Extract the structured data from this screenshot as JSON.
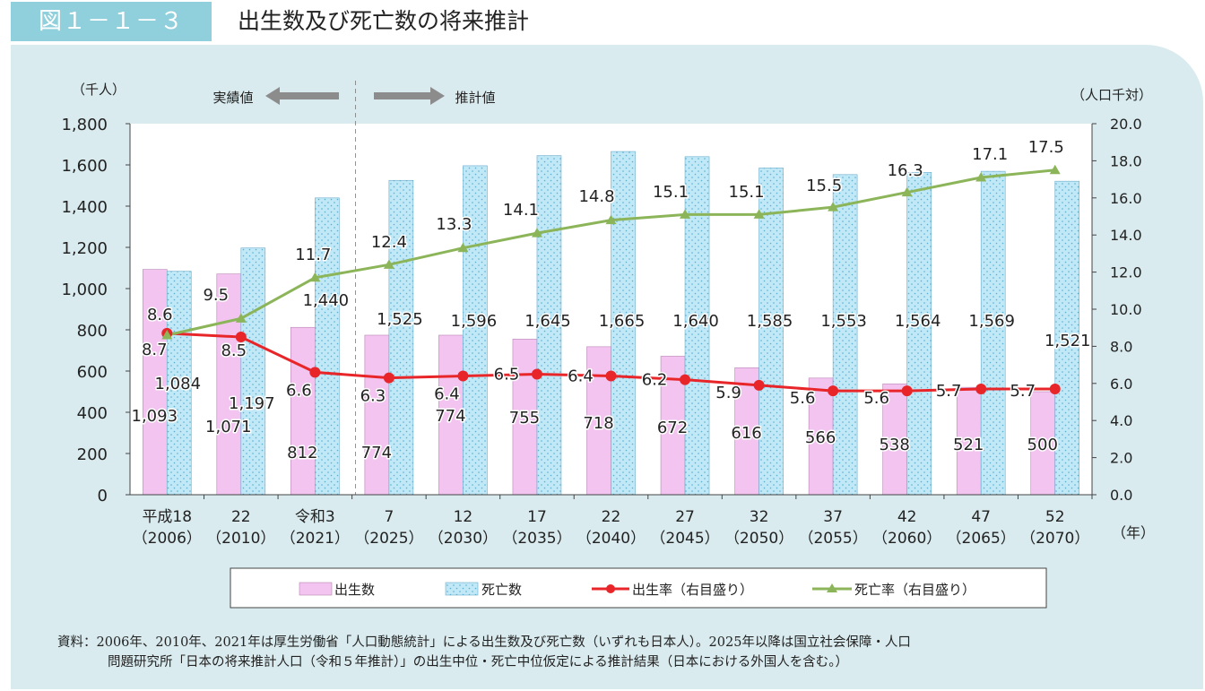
{
  "header": {
    "figure_number": "図１－１－３",
    "title": "出生数及び死亡数の将来推計"
  },
  "source": {
    "line1": "資料：2006年、2010年、2021年は厚生労働省「人口動態統計」による出生数及び死亡数（いずれも日本人）。2025年以降は国立社会保障・人口",
    "line2": "問題研究所「日本の将来推計人口（令和５年推計）」の出生中位・死亡中位仮定による推計結果（日本における外国人を含む。）"
  },
  "colors": {
    "panel_bg": "#d9ebef",
    "births_bar": "#f2c4ef",
    "deaths_bar": "#c0e8f6",
    "birth_rate_line": "#e8262a",
    "death_rate_line": "#8cb55a",
    "arrow": "#8c8c8c"
  },
  "chart_data": {
    "type": "bar",
    "left_unit": "（千人）",
    "right_unit": "（人口千対）",
    "x_unit": "（年）",
    "actual_label": "実績値",
    "projected_label": "推計値",
    "categories": [
      {
        "era": "平成18",
        "year": "（2006）"
      },
      {
        "era": "22",
        "year": "（2010）"
      },
      {
        "era": "令和3",
        "year": "（2021）"
      },
      {
        "era": "7",
        "year": "（2025）"
      },
      {
        "era": "12",
        "year": "（2030）"
      },
      {
        "era": "17",
        "year": "（2035）"
      },
      {
        "era": "22",
        "year": "（2040）"
      },
      {
        "era": "27",
        "year": "（2045）"
      },
      {
        "era": "32",
        "year": "（2050）"
      },
      {
        "era": "37",
        "year": "（2055）"
      },
      {
        "era": "42",
        "year": "（2060）"
      },
      {
        "era": "47",
        "year": "（2065）"
      },
      {
        "era": "52",
        "year": "（2070）"
      }
    ],
    "ylim_left": [
      0,
      1800
    ],
    "yticks_left": [
      "0",
      "200",
      "400",
      "600",
      "800",
      "1,000",
      "1,200",
      "1,400",
      "1,600",
      "1,800"
    ],
    "ylim_right": [
      0,
      20
    ],
    "yticks_right": [
      "0.0",
      "2.0",
      "4.0",
      "6.0",
      "8.0",
      "10.0",
      "12.0",
      "14.0",
      "16.0",
      "18.0",
      "20.0"
    ],
    "series": [
      {
        "name": "出生数",
        "axis": "left",
        "kind": "bar",
        "values": [
          1093,
          1071,
          812,
          774,
          774,
          755,
          718,
          672,
          616,
          566,
          538,
          521,
          500
        ],
        "labels": [
          "1,093",
          "1,071",
          "812",
          "774",
          "774",
          "755",
          "718",
          "672",
          "616",
          "566",
          "538",
          "521",
          "500"
        ]
      },
      {
        "name": "死亡数",
        "axis": "left",
        "kind": "bar",
        "values": [
          1084,
          1197,
          1440,
          1525,
          1596,
          1645,
          1665,
          1640,
          1585,
          1553,
          1564,
          1569,
          1521
        ],
        "labels": [
          "1,084",
          "1,197",
          "1,440",
          "1,525",
          "1,596",
          "1,645",
          "1,665",
          "1,640",
          "1,585",
          "1,553",
          "1,564",
          "1,569",
          "1,521"
        ]
      },
      {
        "name": "出生率（右目盛り）",
        "axis": "right",
        "kind": "line",
        "values": [
          8.7,
          8.5,
          6.6,
          6.3,
          6.4,
          6.5,
          6.4,
          6.2,
          5.9,
          5.6,
          5.6,
          5.7,
          5.7
        ],
        "labels": [
          "8.7",
          "8.5",
          "6.6",
          "6.3",
          "6.4",
          "6.5",
          "6.4",
          "6.2",
          "5.9",
          "5.6",
          "5.6",
          "5.7",
          "5.7"
        ]
      },
      {
        "name": "死亡率（右目盛り）",
        "axis": "right",
        "kind": "line",
        "values": [
          8.6,
          9.5,
          11.7,
          12.4,
          13.3,
          14.1,
          14.8,
          15.1,
          15.1,
          15.5,
          16.3,
          17.1,
          17.5
        ],
        "labels": [
          "8.6",
          "9.5",
          "11.7",
          "12.4",
          "13.3",
          "14.1",
          "14.8",
          "15.1",
          "15.1",
          "15.5",
          "16.3",
          "17.1",
          "17.5"
        ]
      }
    ],
    "legend_position": "bottom",
    "grid": false
  }
}
